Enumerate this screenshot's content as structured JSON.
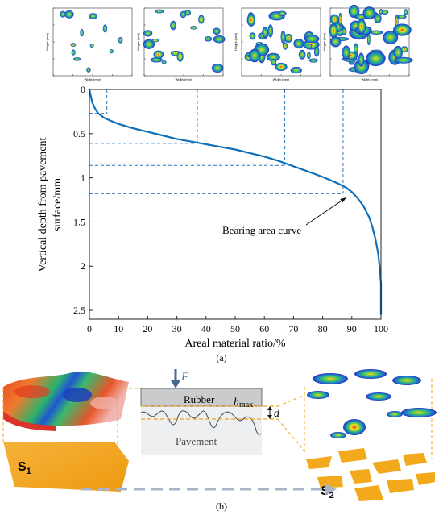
{
  "thumbnails": [
    {
      "ylabel": "Height (mm)",
      "xlabel": "Width (mm)"
    },
    {
      "ylabel": "Height (mm)",
      "xlabel": "Width (mm)"
    },
    {
      "ylabel": "Height (mm)",
      "xlabel": "Width (mm)"
    },
    {
      "ylabel": "Height (mm)",
      "xlabel": "Width (mm)"
    }
  ],
  "chart_data": {
    "type": "line",
    "xlabel": "Areal material ratio/%",
    "ylabel": "Vertical depth from pavement surface/mm",
    "xlim": [
      0,
      100
    ],
    "ylim": [
      0,
      2.6
    ],
    "y_inverted": true,
    "xticks": [
      0,
      10,
      20,
      30,
      40,
      50,
      60,
      70,
      80,
      90,
      100
    ],
    "yticks": [
      0,
      0.5,
      1,
      1.5,
      2,
      2.5
    ],
    "grid": false,
    "series": [
      {
        "name": "Bearing area curve",
        "color": "#0f6fb8",
        "x": [
          0,
          0.3,
          1,
          2,
          3,
          5,
          7,
          10,
          15,
          20,
          25,
          30,
          35,
          40,
          45,
          50,
          55,
          60,
          65,
          70,
          75,
          80,
          85,
          88,
          90,
          92,
          94,
          96,
          97,
          98,
          99,
          99.5,
          100,
          100
        ],
        "y": [
          0,
          0.05,
          0.15,
          0.22,
          0.27,
          0.32,
          0.35,
          0.39,
          0.44,
          0.48,
          0.52,
          0.56,
          0.59,
          0.62,
          0.65,
          0.68,
          0.72,
          0.76,
          0.81,
          0.87,
          0.93,
          0.99,
          1.06,
          1.11,
          1.16,
          1.23,
          1.32,
          1.45,
          1.55,
          1.68,
          1.85,
          2.0,
          2.2,
          2.55
        ]
      }
    ],
    "reference_lines": [
      {
        "x": 6,
        "y": 0.27
      },
      {
        "x": 37,
        "y": 0.61
      },
      {
        "x": 67,
        "y": 0.86
      },
      {
        "x": 87,
        "y": 1.18
      }
    ],
    "reference_color": "#2f77c0",
    "annotation": {
      "text": "Bearing area curve",
      "x": 90,
      "y": 1.17
    }
  },
  "panel_a_label": "(a)",
  "panel_b_label": "(b)",
  "diagram": {
    "force_label": "F",
    "rubber_label": "Rubber",
    "hmax_label": "h",
    "hmax_sub": "max",
    "d_label": "d",
    "pavement_label": "Pavement",
    "s1_label": "S",
    "s1_sub": "1",
    "s2_label": "S",
    "s2_sub": "2",
    "rubber_color": "#c9cbcd",
    "pavement_color": "#eeeff0",
    "plane_color": "#f1a51c",
    "dashed_color": "#f0a418",
    "arrow_color": "#a8b5c8",
    "force_color": "#4a6890"
  }
}
